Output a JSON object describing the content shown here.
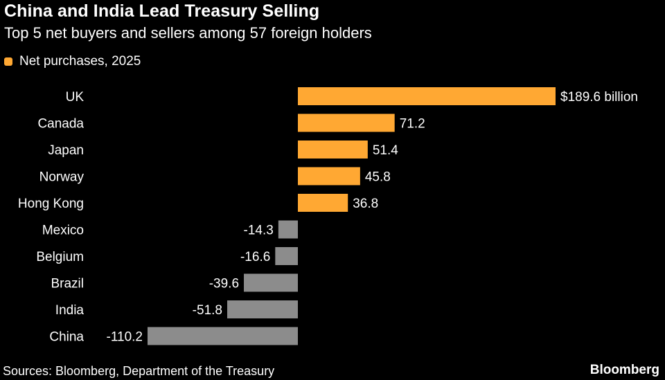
{
  "chart_data": {
    "type": "bar",
    "orientation": "horizontal",
    "title": "China and India Lead Treasury Selling",
    "subtitle": "Top 5 net buyers and sellers among 57 foreign holders",
    "legend": [
      {
        "label": "Net purchases, 2025",
        "color": "#FFA833"
      }
    ],
    "categories": [
      "UK",
      "Canada",
      "Japan",
      "Norway",
      "Hong Kong",
      "Mexico",
      "Belgium",
      "Brazil",
      "India",
      "China"
    ],
    "values": [
      189.6,
      71.2,
      51.4,
      45.8,
      36.8,
      -14.3,
      -16.6,
      -39.6,
      -51.8,
      -110.2
    ],
    "value_labels": [
      "$189.6 billion",
      "71.2",
      "51.4",
      "45.8",
      "36.8",
      "-14.3",
      "-16.6",
      "-39.6",
      "-51.8",
      "-110.2"
    ],
    "positive_color": "#FFA833",
    "negative_color": "#8C8C8C",
    "xlim": [
      -110.2,
      189.6
    ]
  },
  "footer": {
    "source": "Sources: Bloomberg, Department of the Treasury",
    "brand": "Bloomberg"
  }
}
